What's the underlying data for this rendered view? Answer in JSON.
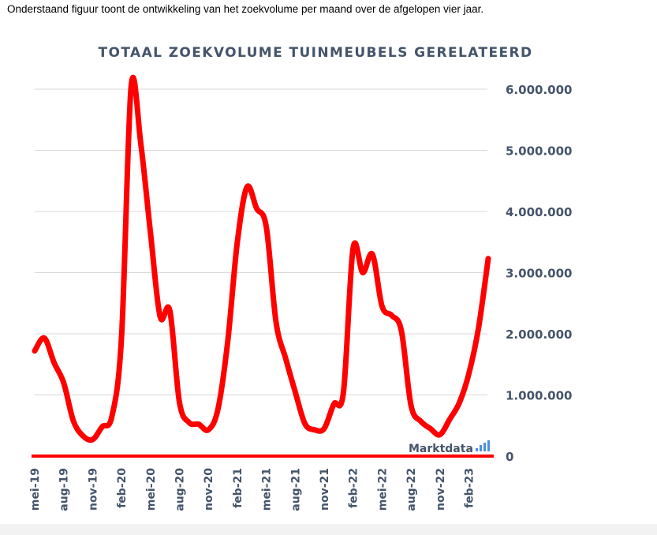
{
  "intro_text": "Onderstaand figuur toont de ontwikkeling van het zoekvolume per maand over de afgelopen vier jaar.",
  "watermark": "Marktdata",
  "colors": {
    "line": "#ff0000",
    "axis_text": "#44546a",
    "grid": "#d9d9d9",
    "baseline": "#ff0000",
    "watermark_bars": "#4a90d9"
  },
  "chart_data": {
    "type": "line",
    "title": "TOTAAL ZOEKVOLUME TUINMEUBELS GERELATEERD",
    "xlabel": "",
    "ylabel": "",
    "ylim": [
      0,
      6000000
    ],
    "grid": true,
    "y_axis_position": "right",
    "y_ticks": [
      0,
      1000000,
      2000000,
      3000000,
      4000000,
      5000000,
      6000000
    ],
    "y_tick_labels": [
      "0",
      "1.000.000",
      "2.000.000",
      "3.000.000",
      "4.000.000",
      "5.000.000",
      "6.000.000"
    ],
    "x_tick_labels": [
      "mei-19",
      "aug-19",
      "nov-19",
      "feb-20",
      "mei-20",
      "aug-20",
      "nov-20",
      "feb-21",
      "mei-21",
      "aug-21",
      "nov-21",
      "feb-22",
      "mei-22",
      "aug-22",
      "nov-22",
      "feb-23"
    ],
    "x_tick_every": 3,
    "categories": [
      "mei-19",
      "jun-19",
      "jul-19",
      "aug-19",
      "sep-19",
      "okt-19",
      "nov-19",
      "dec-19",
      "jan-20",
      "feb-20",
      "mrt-20",
      "apr-20",
      "mei-20",
      "jun-20",
      "jul-20",
      "aug-20",
      "sep-20",
      "okt-20",
      "nov-20",
      "dec-20",
      "jan-21",
      "feb-21",
      "mrt-21",
      "apr-21",
      "mei-21",
      "jun-21",
      "jul-21",
      "aug-21",
      "sep-21",
      "okt-21",
      "nov-21",
      "dec-21",
      "jan-22",
      "feb-22",
      "mrt-22",
      "apr-22",
      "mei-22",
      "jun-22",
      "jul-22",
      "aug-22",
      "sep-22",
      "okt-22",
      "nov-22",
      "dec-22",
      "jan-23",
      "feb-23",
      "mrt-23",
      "apr-23"
    ],
    "series": [
      {
        "values": [
          1720000,
          1930000,
          1530000,
          1200000,
          580000,
          330000,
          270000,
          480000,
          650000,
          1950000,
          6050000,
          5100000,
          3650000,
          2280000,
          2380000,
          880000,
          550000,
          520000,
          430000,
          770000,
          1870000,
          3500000,
          4400000,
          4050000,
          3750000,
          2200000,
          1600000,
          1050000,
          530000,
          430000,
          450000,
          850000,
          1050000,
          3400000,
          3000000,
          3300000,
          2450000,
          2300000,
          2050000,
          830000,
          570000,
          450000,
          350000,
          600000,
          870000,
          1350000,
          2100000,
          3230000
        ]
      }
    ]
  }
}
